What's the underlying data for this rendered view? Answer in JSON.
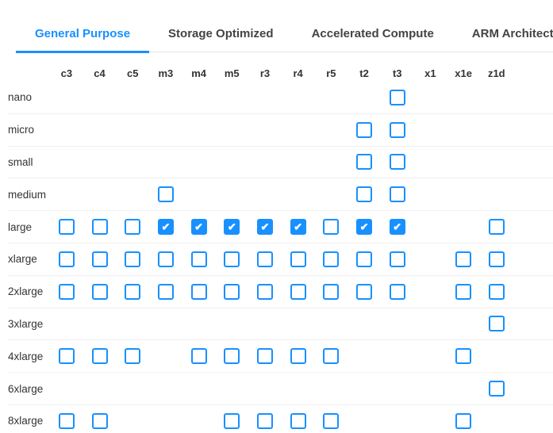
{
  "colors": {
    "accent": "#1890ff",
    "tab_inactive_text": "#434343",
    "row_separator": "#f1f1f1",
    "tabbar_border": "#e4e4e4",
    "label_text": "#333333",
    "checkmark": "#ffffff"
  },
  "icons": {
    "checkmark": "✔"
  },
  "tabs": [
    {
      "label": "General Purpose",
      "active": true
    },
    {
      "label": "Storage Optimized",
      "active": false
    },
    {
      "label": "Accelerated Compute",
      "active": false
    },
    {
      "label": "ARM Architecture",
      "active": false
    }
  ],
  "matrix": {
    "columns": [
      "c3",
      "c4",
      "c5",
      "m3",
      "m4",
      "m5",
      "r3",
      "r4",
      "r5",
      "t2",
      "t3",
      "x1",
      "x1e",
      "z1d"
    ],
    "rows": [
      {
        "label": "nano",
        "cells": [
          null,
          null,
          null,
          null,
          null,
          null,
          null,
          null,
          null,
          null,
          "unchecked",
          null,
          null,
          null
        ]
      },
      {
        "label": "micro",
        "cells": [
          null,
          null,
          null,
          null,
          null,
          null,
          null,
          null,
          null,
          "unchecked",
          "unchecked",
          null,
          null,
          null
        ]
      },
      {
        "label": "small",
        "cells": [
          null,
          null,
          null,
          null,
          null,
          null,
          null,
          null,
          null,
          "unchecked",
          "unchecked",
          null,
          null,
          null
        ]
      },
      {
        "label": "medium",
        "cells": [
          null,
          null,
          null,
          "unchecked",
          null,
          null,
          null,
          null,
          null,
          "unchecked",
          "unchecked",
          null,
          null,
          null
        ]
      },
      {
        "label": "large",
        "cells": [
          "unchecked",
          "unchecked",
          "unchecked",
          "checked",
          "checked",
          "checked",
          "checked",
          "checked",
          "unchecked",
          "checked",
          "checked",
          null,
          null,
          "unchecked"
        ]
      },
      {
        "label": "xlarge",
        "cells": [
          "unchecked",
          "unchecked",
          "unchecked",
          "unchecked",
          "unchecked",
          "unchecked",
          "unchecked",
          "unchecked",
          "unchecked",
          "unchecked",
          "unchecked",
          null,
          "unchecked",
          "unchecked"
        ]
      },
      {
        "label": "2xlarge",
        "cells": [
          "unchecked",
          "unchecked",
          "unchecked",
          "unchecked",
          "unchecked",
          "unchecked",
          "unchecked",
          "unchecked",
          "unchecked",
          "unchecked",
          "unchecked",
          null,
          "unchecked",
          "unchecked"
        ]
      },
      {
        "label": "3xlarge",
        "cells": [
          null,
          null,
          null,
          null,
          null,
          null,
          null,
          null,
          null,
          null,
          null,
          null,
          null,
          "unchecked"
        ]
      },
      {
        "label": "4xlarge",
        "cells": [
          "unchecked",
          "unchecked",
          "unchecked",
          null,
          "unchecked",
          "unchecked",
          "unchecked",
          "unchecked",
          "unchecked",
          null,
          null,
          null,
          "unchecked",
          null
        ]
      },
      {
        "label": "6xlarge",
        "cells": [
          null,
          null,
          null,
          null,
          null,
          null,
          null,
          null,
          null,
          null,
          null,
          null,
          null,
          "unchecked"
        ]
      },
      {
        "label": "8xlarge",
        "cells": [
          "unchecked",
          "unchecked",
          null,
          null,
          null,
          "unchecked",
          "unchecked",
          "unchecked",
          "unchecked",
          null,
          null,
          null,
          "unchecked",
          null
        ]
      }
    ]
  }
}
